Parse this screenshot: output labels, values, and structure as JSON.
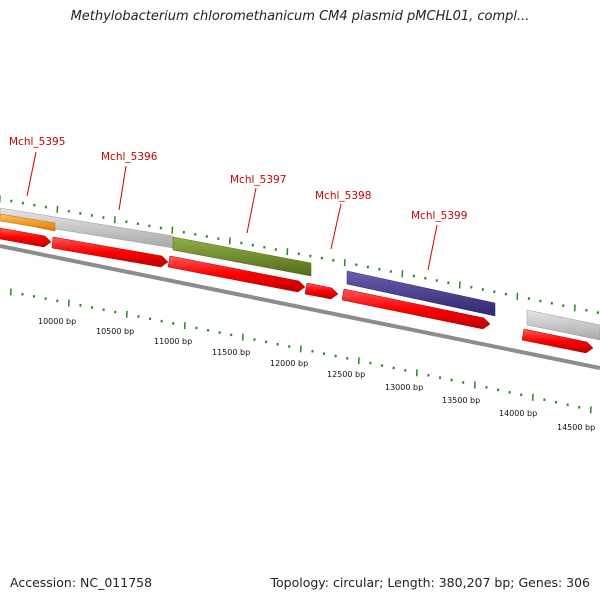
{
  "title": "Methylobacterium chloromethanicum CM4 plasmid pMCHL01, compl...",
  "footer": {
    "accession": "Accession: NC_011758",
    "summary": "Topology: circular; Length: 380,207 bp; Genes: 306"
  },
  "colors": {
    "tick": "#228b22",
    "label": "#cc0000",
    "backbone": "#808080",
    "gene": "#ff0000",
    "orange": "#f59a1a",
    "gray": "#c0c0c0",
    "olive": "#6b8e23",
    "purple": "#483d8b"
  },
  "gene_labels": [
    {
      "text": "Mchl_5395"
    },
    {
      "text": "Mchl_5396"
    },
    {
      "text": "Mchl_5397"
    },
    {
      "text": "Mchl_5398"
    },
    {
      "text": "Mchl_5399"
    }
  ],
  "ruler": {
    "unit": "bp",
    "labels": [
      "10000 bp",
      "10500 bp",
      "11000 bp",
      "11500 bp",
      "12000 bp",
      "12500 bp",
      "13000 bp",
      "13500 bp",
      "14000 bp",
      "14500 bp"
    ]
  }
}
